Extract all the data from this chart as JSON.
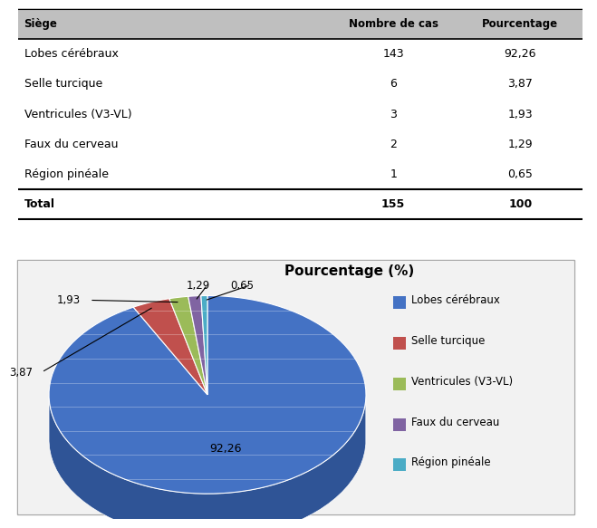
{
  "table_headers": [
    "Siège",
    "Nombre de cas",
    "Pourcentage"
  ],
  "table_rows": [
    [
      "Lobes cérébraux",
      "143",
      "92,26"
    ],
    [
      "Selle turcique",
      "6",
      "3,87"
    ],
    [
      "Ventricules (V3-VL)",
      "3",
      "1,93"
    ],
    [
      "Faux du cerveau",
      "2",
      "1,29"
    ],
    [
      "Région pinéale",
      "1",
      "0,65"
    ],
    [
      "Total",
      "155",
      "100"
    ]
  ],
  "pie_labels": [
    "Lobes cérébraux",
    "Selle turcique",
    "Ventricules (V3-VL)",
    "Faux du cerveau",
    "Région pinéale"
  ],
  "pie_values": [
    92.26,
    3.87,
    1.93,
    1.29,
    0.65
  ],
  "pie_label_texts": [
    "92,26",
    "3,87",
    "1,93",
    "1,29",
    "0,65"
  ],
  "pie_colors": [
    "#4472C4",
    "#C0504D",
    "#9BBB59",
    "#8064A2",
    "#4BACC6"
  ],
  "pie_colors_dark": [
    "#2F5496",
    "#943634",
    "#76923C",
    "#5F497A",
    "#31849B"
  ],
  "pie_title": "Pourcentage (%)",
  "background_color": "#FFFFFF"
}
